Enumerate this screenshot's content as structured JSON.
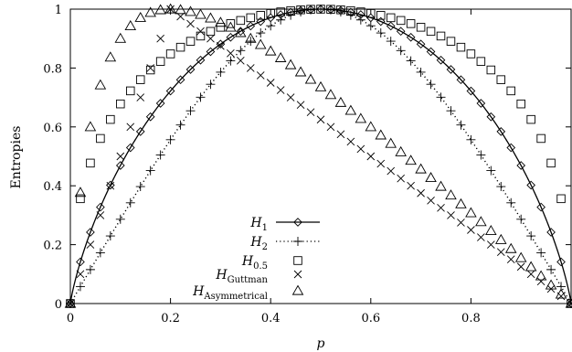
{
  "chart_data": {
    "type": "scatter",
    "xlabel": "p",
    "ylabel": "Entropies",
    "xlim": [
      0,
      1
    ],
    "ylim": [
      0,
      1
    ],
    "x_ticks": [
      "0",
      "0.2",
      "0.4",
      "0.6",
      "0.8"
    ],
    "y_ticks": [
      "0",
      "0.2",
      "0.4",
      "0.6",
      "0.8",
      "1"
    ],
    "legend_position": "bottom-center",
    "series": [
      {
        "name": "H1",
        "base": "H",
        "sub": "1",
        "marker": "diamond",
        "line": "solid",
        "formula": "h1"
      },
      {
        "name": "H2",
        "base": "H",
        "sub": "2",
        "marker": "plus",
        "line": "dotted",
        "formula": "h2"
      },
      {
        "name": "H0.5",
        "base": "H",
        "sub": "0.5",
        "marker": "square",
        "line": "none",
        "formula": "h05"
      },
      {
        "name": "HGuttman",
        "base": "H",
        "sub": "Guttman",
        "marker": "cross",
        "line": "none",
        "formula": "guttman"
      },
      {
        "name": "HAsymmetrical",
        "base": "H",
        "sub": "Asymmetrical",
        "marker": "triangle",
        "line": "none",
        "formula": "asym"
      }
    ]
  }
}
